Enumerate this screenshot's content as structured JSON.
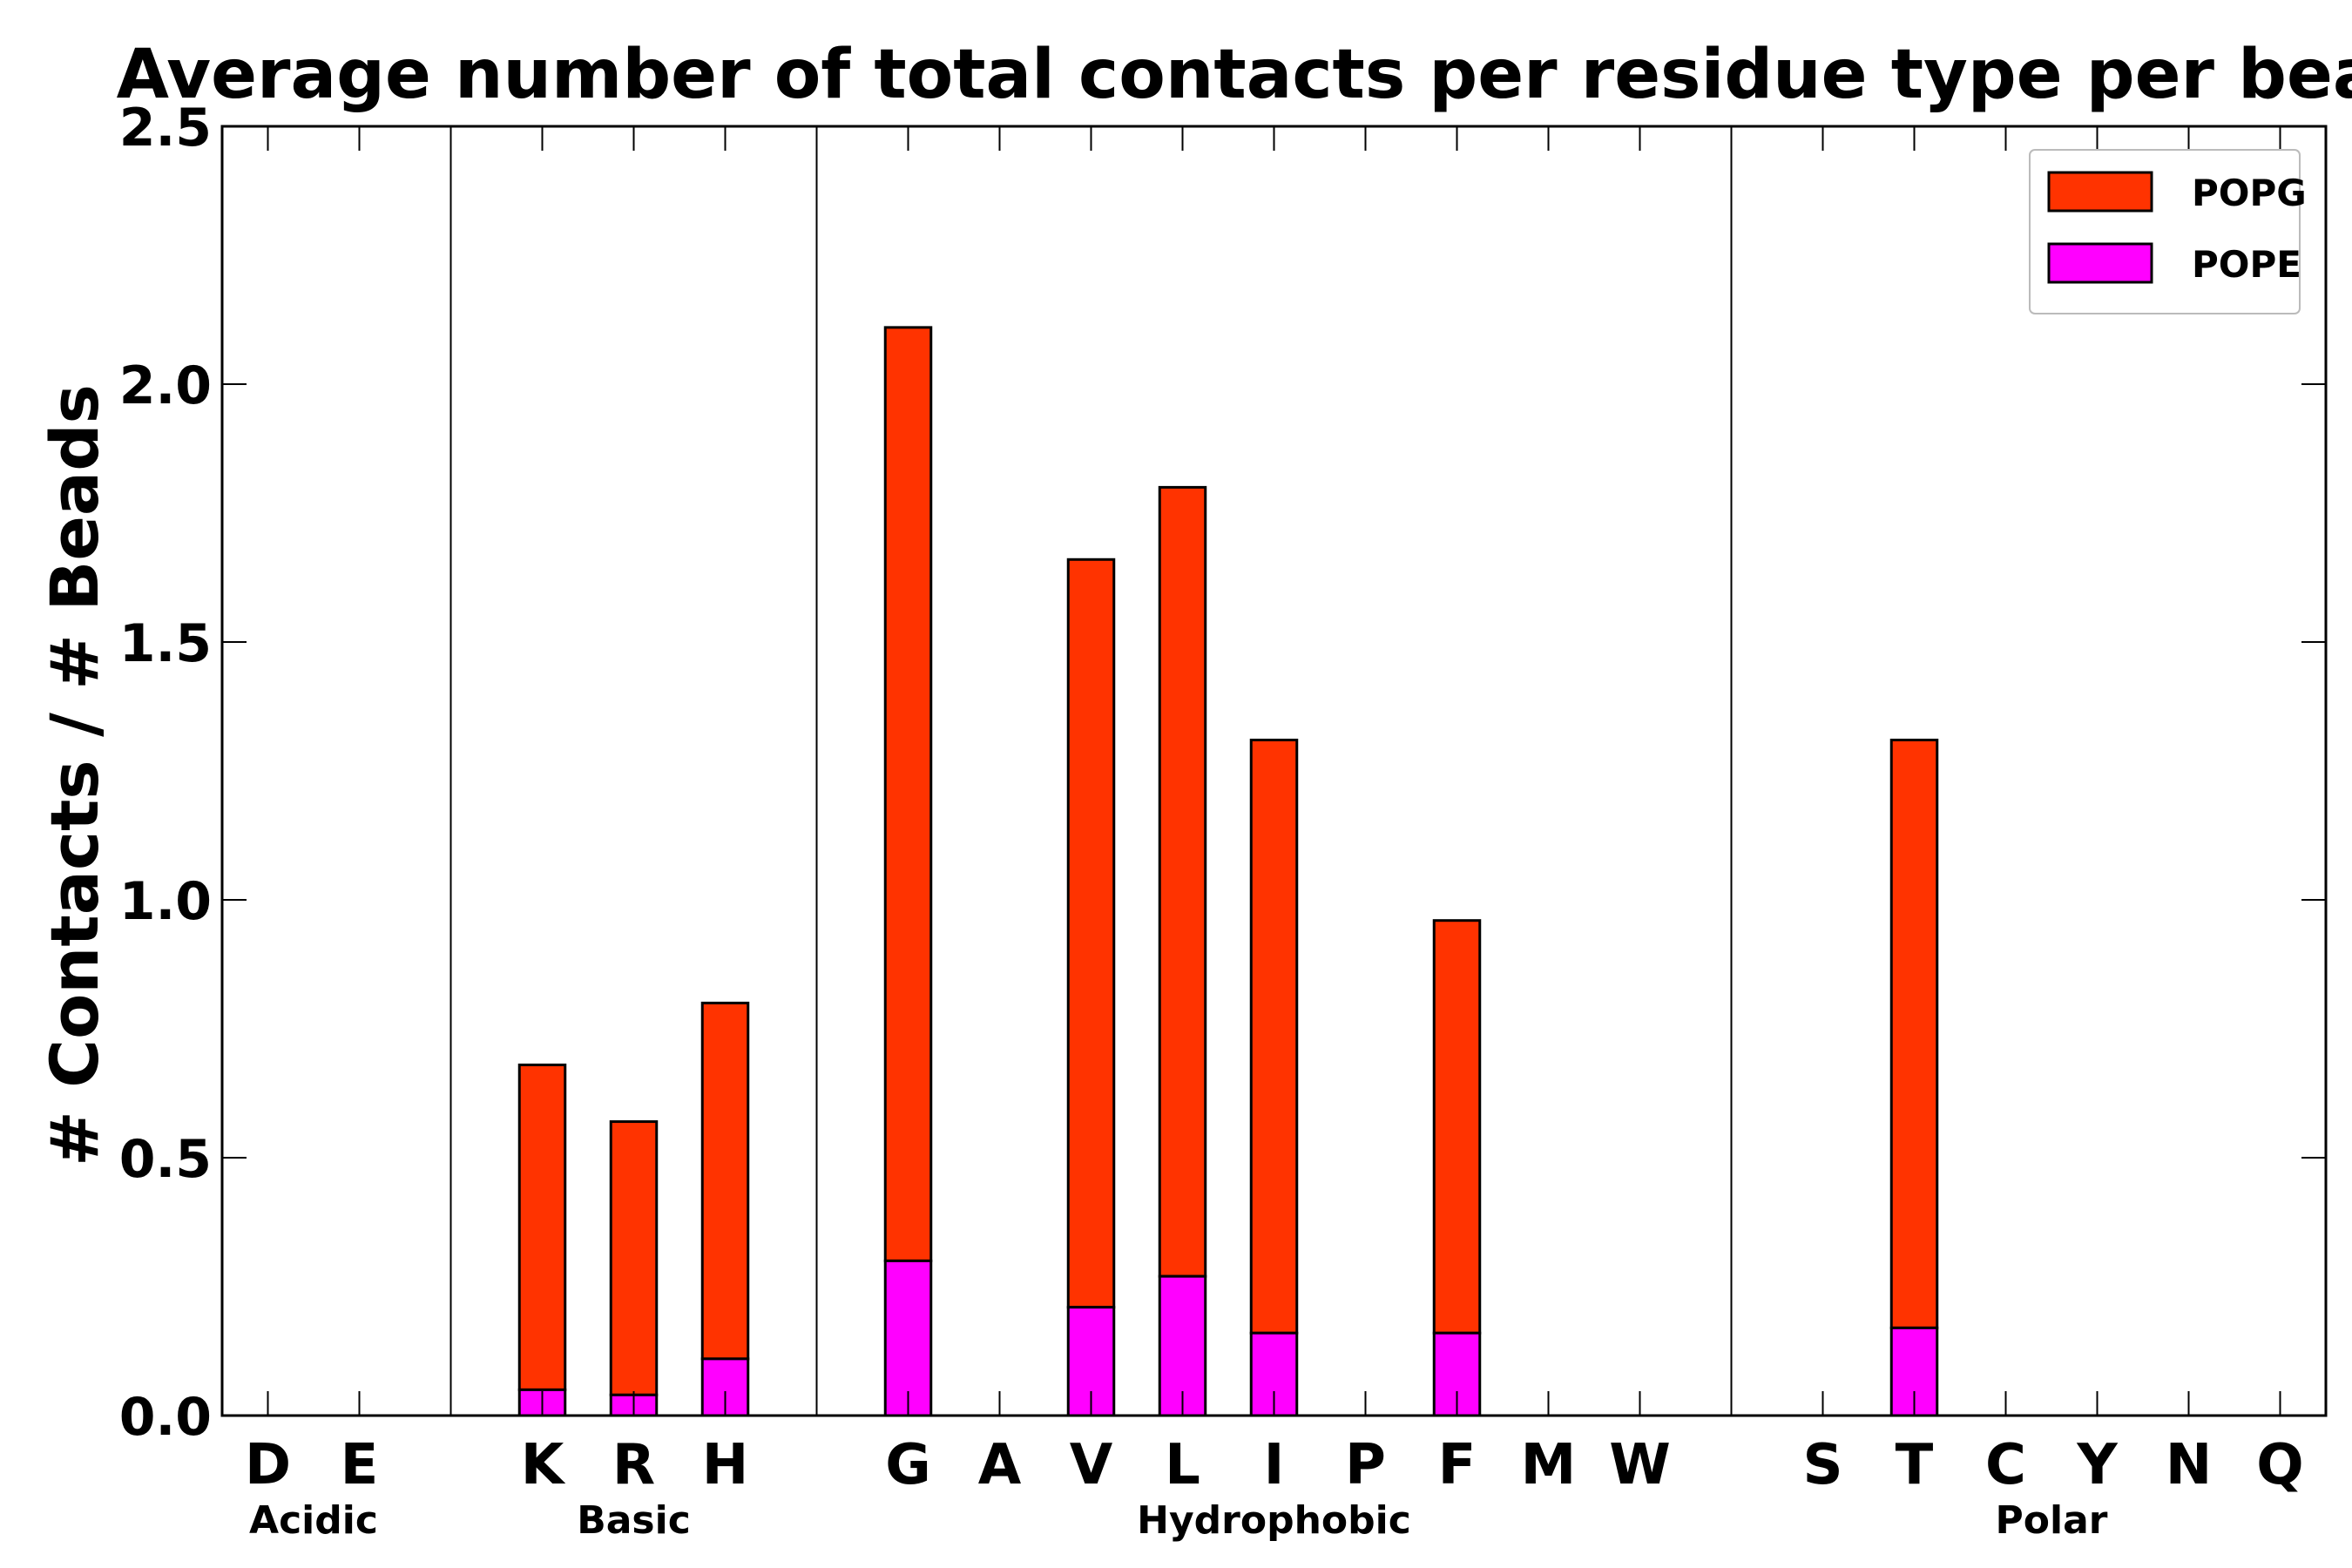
{
  "chart_data": {
    "type": "bar",
    "stacked": true,
    "title": "Average number of total contacts per residue type per bead",
    "xlabel": "",
    "ylabel": "# Contacts / # Beads",
    "ylim": [
      0,
      2.5
    ],
    "yticks": [
      "0.0",
      "0.5",
      "1.0",
      "1.5",
      "2.0",
      "2.5"
    ],
    "grid": false,
    "legend_position": "top-right",
    "categories": [
      "D",
      "E",
      "K",
      "R",
      "H",
      "G",
      "A",
      "V",
      "L",
      "I",
      "P",
      "F",
      "M",
      "W",
      "S",
      "T",
      "C",
      "Y",
      "N",
      "Q"
    ],
    "groups": [
      {
        "name": "Acidic",
        "members": [
          "D",
          "E"
        ]
      },
      {
        "name": "Basic",
        "members": [
          "K",
          "R",
          "H"
        ]
      },
      {
        "name": "Hydrophobic",
        "members": [
          "G",
          "A",
          "V",
          "L",
          "I",
          "P",
          "F",
          "M",
          "W"
        ]
      },
      {
        "name": "Polar",
        "members": [
          "S",
          "T",
          "C",
          "Y",
          "N",
          "Q"
        ]
      }
    ],
    "series": [
      {
        "name": "POPE",
        "color": "#ff00ff",
        "values": [
          0,
          0,
          0.05,
          0.04,
          0.11,
          0.3,
          0,
          0.21,
          0.27,
          0.16,
          0,
          0.16,
          0,
          0,
          0,
          0.17,
          0,
          0,
          0,
          0
        ]
      },
      {
        "name": "POPG",
        "color": "#ff3300",
        "values": [
          0,
          0,
          0.63,
          0.53,
          0.69,
          1.81,
          0,
          1.45,
          1.53,
          1.15,
          0,
          0.8,
          0,
          0,
          0,
          1.14,
          0,
          0,
          0,
          0
        ]
      }
    ],
    "legend_order": [
      "POPG",
      "POPE"
    ]
  }
}
